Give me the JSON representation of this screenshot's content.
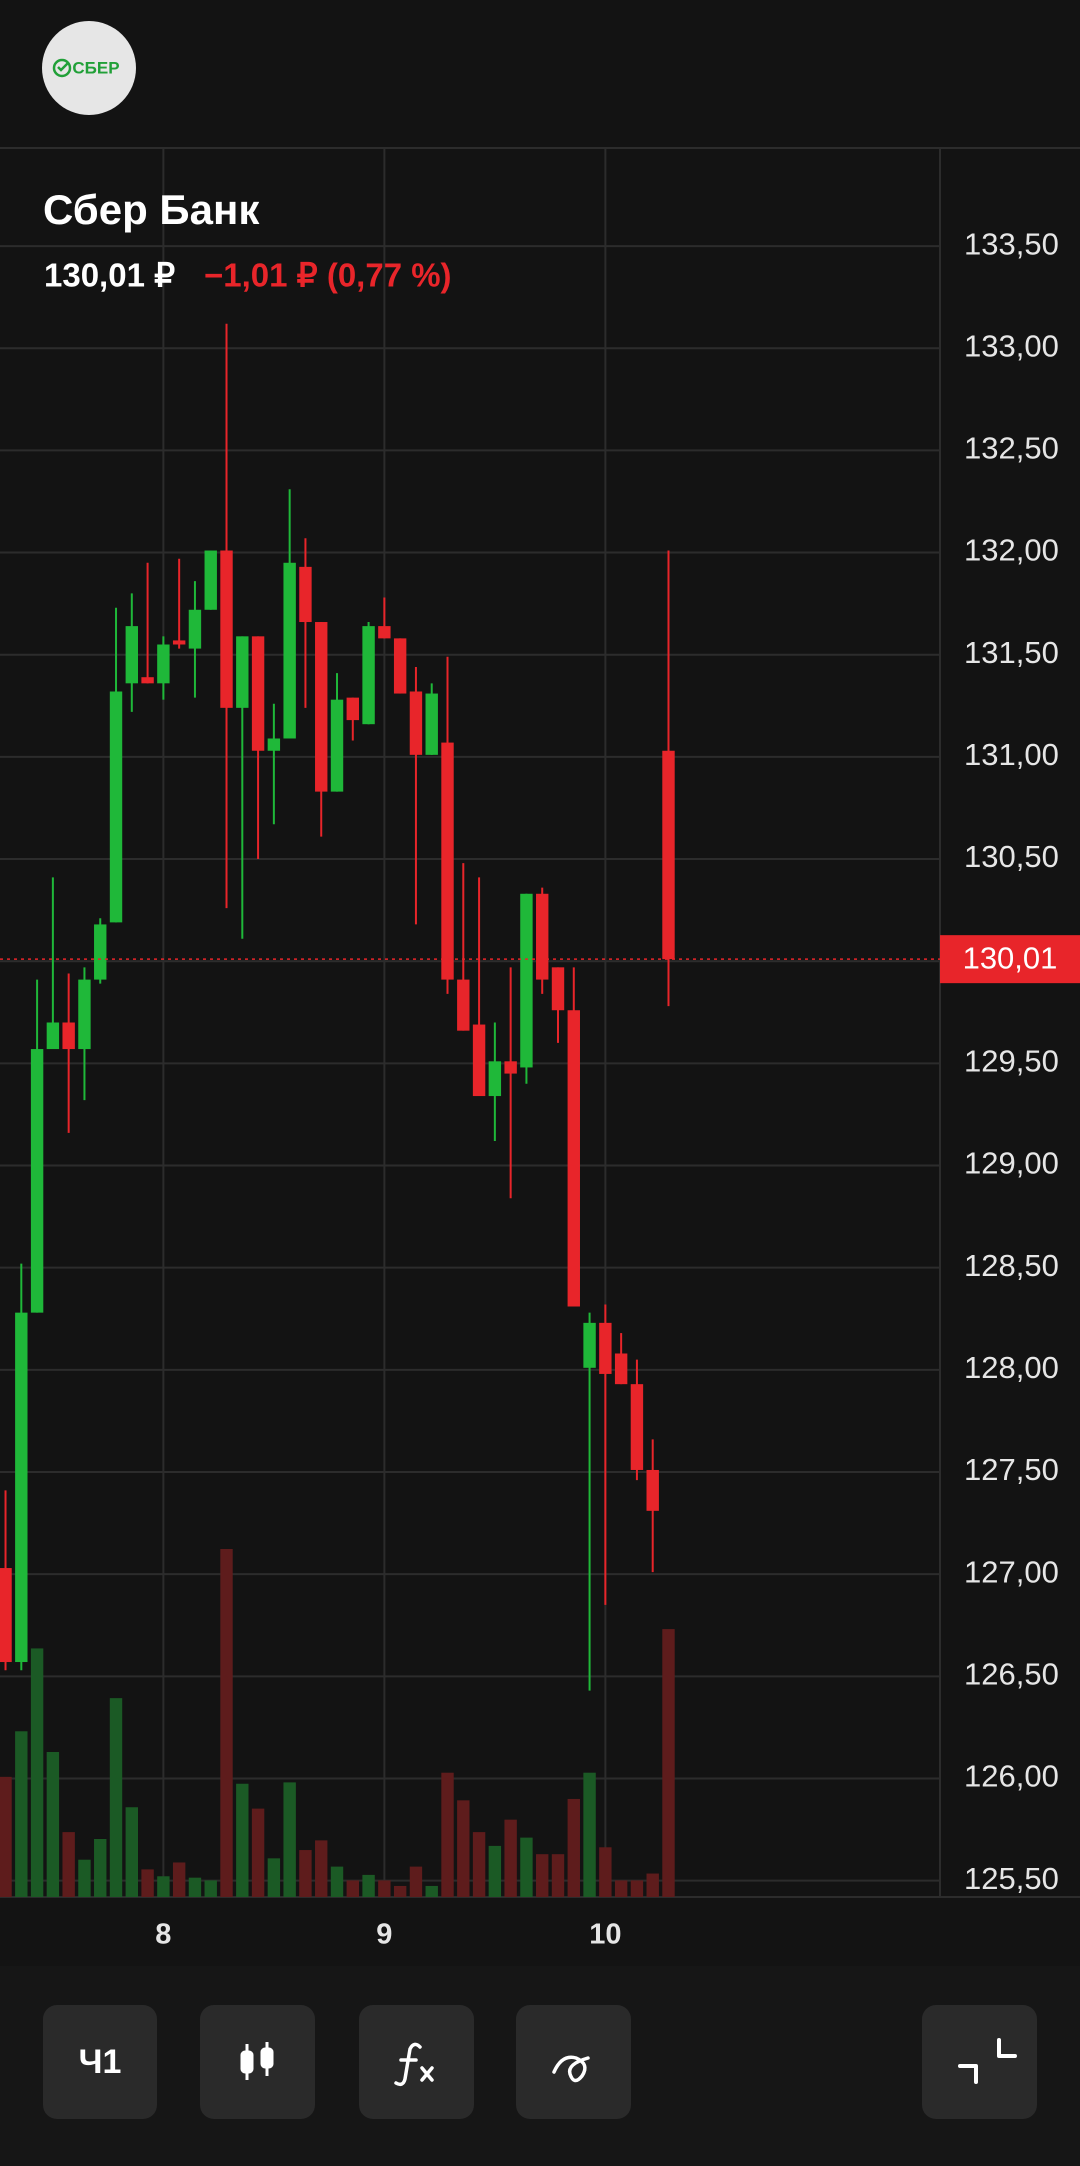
{
  "header": {
    "logo": "СБЕР",
    "title": "Сбер Банк",
    "price": "130,01 ₽",
    "change": "−1,01 ₽ (0,77 %)"
  },
  "chart_data": {
    "type": "candlestick",
    "categories": [
      null,
      null,
      null,
      null,
      null,
      null,
      null,
      null,
      null,
      null,
      null,
      null,
      null,
      null,
      null,
      null,
      null,
      null,
      null,
      null,
      null,
      null,
      null,
      null,
      null,
      null,
      null,
      null,
      null,
      null,
      null,
      null,
      null,
      null,
      null,
      null,
      null,
      null,
      null,
      null,
      null,
      null,
      null
    ],
    "open": [
      127.03,
      126.57,
      128.28,
      129.57,
      129.7,
      129.57,
      129.91,
      130.19,
      131.36,
      131.39,
      131.36,
      131.57,
      131.53,
      131.72,
      132.01,
      131.24,
      131.59,
      131.03,
      131.09,
      131.93,
      131.66,
      130.83,
      131.29,
      131.16,
      131.64,
      131.58,
      131.32,
      131.01,
      131.07,
      129.91,
      129.69,
      129.34,
      129.51,
      129.48,
      130.33,
      129.97,
      129.76,
      128.01,
      128.23,
      128.08,
      127.93,
      127.51,
      131.03
    ],
    "high": [
      127.41,
      128.52,
      129.91,
      130.41,
      129.94,
      129.97,
      130.21,
      131.73,
      131.8,
      131.95,
      131.59,
      131.97,
      131.86,
      132.01,
      133.12,
      131.59,
      131.59,
      131.26,
      132.31,
      132.07,
      131.66,
      131.41,
      131.29,
      131.66,
      131.78,
      131.58,
      131.44,
      131.36,
      131.49,
      130.48,
      130.41,
      129.7,
      129.97,
      130.33,
      130.36,
      129.97,
      129.97,
      128.28,
      128.32,
      128.18,
      128.05,
      127.66,
      132.01
    ],
    "low": [
      126.53,
      126.53,
      128.28,
      129.57,
      129.16,
      129.32,
      129.89,
      130.19,
      131.22,
      131.36,
      131.28,
      131.53,
      131.29,
      131.72,
      130.26,
      130.11,
      130.5,
      130.67,
      131.09,
      131.24,
      130.61,
      130.83,
      131.08,
      131.16,
      131.58,
      131.31,
      130.18,
      131.01,
      129.84,
      129.66,
      129.34,
      129.12,
      128.84,
      129.4,
      129.84,
      129.6,
      128.31,
      126.43,
      126.85,
      127.93,
      127.46,
      127.01,
      129.78
    ],
    "close": [
      126.57,
      128.28,
      129.57,
      129.7,
      129.57,
      129.91,
      130.18,
      131.32,
      131.64,
      131.36,
      131.55,
      131.55,
      131.72,
      132.01,
      131.24,
      131.59,
      131.03,
      131.09,
      131.95,
      131.66,
      130.83,
      131.28,
      131.18,
      131.64,
      131.58,
      131.31,
      131.01,
      131.31,
      129.91,
      129.66,
      129.34,
      129.51,
      129.45,
      130.33,
      129.91,
      129.76,
      128.31,
      128.23,
      127.98,
      127.93,
      127.51,
      127.31,
      130.01
    ],
    "volume": [
      87,
      120,
      180,
      105,
      47,
      27,
      42,
      144,
      65,
      20,
      15,
      25,
      14,
      12,
      252,
      82,
      64,
      28,
      83,
      34,
      41,
      22,
      12,
      16,
      12,
      8,
      22,
      8,
      90,
      70,
      47,
      37,
      56,
      43,
      31,
      31,
      71,
      90,
      36,
      12,
      12,
      17,
      194
    ],
    "up_color": "#1fb839",
    "down_color": "#e8252a",
    "volume_up_color": "#1b5a25",
    "volume_down_color": "#5e1c1c",
    "xlim": [
      -0.35,
      59.2
    ],
    "xticks": [
      {
        "value": 10,
        "label": "8"
      },
      {
        "value": 24,
        "label": "9"
      },
      {
        "value": 38,
        "label": "10"
      }
    ],
    "ylim": [
      125.42,
      133.98
    ],
    "yticks": [
      {
        "value": 125.5,
        "label": "125,50"
      },
      {
        "value": 126,
        "label": "126,00"
      },
      {
        "value": 126.5,
        "label": "126,50"
      },
      {
        "value": 127,
        "label": "127,00"
      },
      {
        "value": 127.5,
        "label": "127,50"
      },
      {
        "value": 128,
        "label": "128,00"
      },
      {
        "value": 128.5,
        "label": "128,50"
      },
      {
        "value": 129,
        "label": "129,00"
      },
      {
        "value": 129.5,
        "label": "129,50"
      },
      {
        "value": 130,
        "label": "130,00"
      },
      {
        "value": 130.5,
        "label": "130,50"
      },
      {
        "value": 131,
        "label": "131,00"
      },
      {
        "value": 131.5,
        "label": "131,50"
      },
      {
        "value": 132,
        "label": "132,00"
      },
      {
        "value": 132.5,
        "label": "132,50"
      },
      {
        "value": 133,
        "label": "133,00"
      },
      {
        "value": 133.5,
        "label": "133,50"
      }
    ],
    "grid": true,
    "price_line": {
      "value": 130.01,
      "label": "130,01"
    }
  },
  "toolbar": {
    "interval": "Ч1"
  }
}
